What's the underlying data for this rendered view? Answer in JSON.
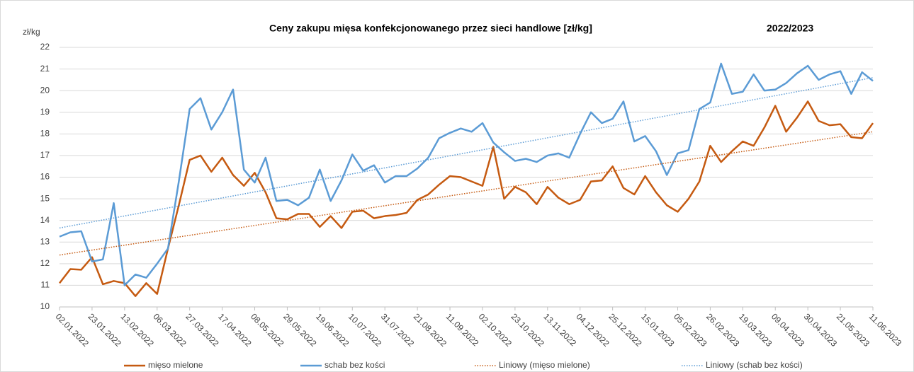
{
  "chart_data": {
    "type": "line",
    "title": "Ceny zakupu mięsa konfekcjonowanego przez sieci handlowe [zł/kg]",
    "annotation": "2022/2023",
    "y_label": "zł/kg",
    "categories": [
      "02.01.2022",
      null,
      null,
      "23.01.2022",
      null,
      null,
      "13.02.2022",
      null,
      null,
      "06.03.2022",
      null,
      null,
      "27.03.2022",
      null,
      null,
      "17.04.2022",
      null,
      null,
      "08.05.2022",
      null,
      null,
      "29.05.2022",
      null,
      null,
      "19.06.2022",
      null,
      null,
      "10.07.2022",
      null,
      null,
      "31.07.2022",
      null,
      null,
      "21.08.2022",
      null,
      null,
      "11.09.2022",
      null,
      null,
      "02.10.2022",
      null,
      null,
      "23.10.2022",
      null,
      null,
      "13.11.2022",
      null,
      null,
      "04.12.2022",
      null,
      null,
      "25.12.2022",
      null,
      null,
      "15.01.2023",
      null,
      null,
      "05.02.2023",
      null,
      null,
      "26.02.2023",
      null,
      null,
      "19.03.2023",
      null,
      null,
      "09.04.2023",
      null,
      null,
      "30.04.2023",
      null,
      null,
      "21.05.2023",
      null,
      null,
      "11.06.2023"
    ],
    "series": [
      {
        "name": "mięso mielone",
        "color": "#c55a11",
        "values": [
          11.1,
          11.75,
          11.72,
          12.3,
          11.05,
          11.2,
          11.1,
          10.5,
          11.1,
          10.6,
          12.7,
          14.7,
          16.8,
          17.0,
          16.25,
          16.9,
          16.1,
          15.6,
          16.2,
          15.3,
          14.1,
          14.05,
          14.3,
          14.3,
          13.7,
          14.2,
          13.65,
          14.4,
          14.45,
          14.1,
          14.2,
          14.25,
          14.35,
          14.95,
          15.2,
          15.65,
          16.05,
          16.0,
          15.8,
          15.6,
          17.4,
          15.0,
          15.55,
          15.3,
          14.75,
          15.55,
          15.05,
          14.75,
          14.95,
          15.8,
          15.85,
          16.5,
          15.5,
          15.2,
          16.05,
          15.3,
          14.7,
          14.4,
          15.0,
          15.8,
          17.45,
          16.7,
          17.2,
          17.65,
          17.45,
          18.3,
          19.3,
          18.1,
          18.75,
          19.5,
          18.6,
          18.4,
          18.45,
          17.85,
          17.8,
          18.5
        ]
      },
      {
        "name": "schab bez kości",
        "color": "#5b9bd5",
        "values": [
          13.25,
          13.45,
          13.5,
          12.1,
          12.2,
          14.8,
          11.0,
          11.5,
          11.35,
          12.0,
          12.7,
          15.8,
          19.15,
          19.65,
          18.2,
          19.0,
          20.05,
          16.35,
          15.75,
          16.9,
          14.9,
          14.95,
          14.7,
          15.05,
          16.35,
          14.9,
          15.85,
          17.05,
          16.3,
          16.55,
          15.75,
          16.05,
          16.05,
          16.4,
          16.9,
          17.8,
          18.05,
          18.25,
          18.1,
          18.5,
          17.6,
          17.15,
          16.75,
          16.85,
          16.7,
          17.0,
          17.1,
          16.9,
          18.0,
          19.0,
          18.5,
          18.7,
          19.5,
          17.65,
          17.9,
          17.2,
          16.1,
          17.1,
          17.25,
          19.15,
          19.45,
          21.25,
          19.85,
          19.95,
          20.75,
          20.0,
          20.05,
          20.35,
          20.8,
          21.15,
          20.5,
          20.75,
          20.9,
          19.85,
          20.85,
          20.45
        ]
      }
    ],
    "trendlines": [
      {
        "name": "Liniowy (mięso mielone)",
        "color": "#c55a11",
        "values": [
          12.4,
          18.1
        ]
      },
      {
        "name": "Liniowy (schab bez kości)",
        "color": "#5b9bd5",
        "values": [
          13.65,
          20.6
        ]
      }
    ],
    "ylim": [
      10,
      22
    ],
    "yticks": [
      10,
      11,
      12,
      13,
      14,
      15,
      16,
      17,
      18,
      19,
      20,
      21,
      22
    ],
    "grid": true
  }
}
